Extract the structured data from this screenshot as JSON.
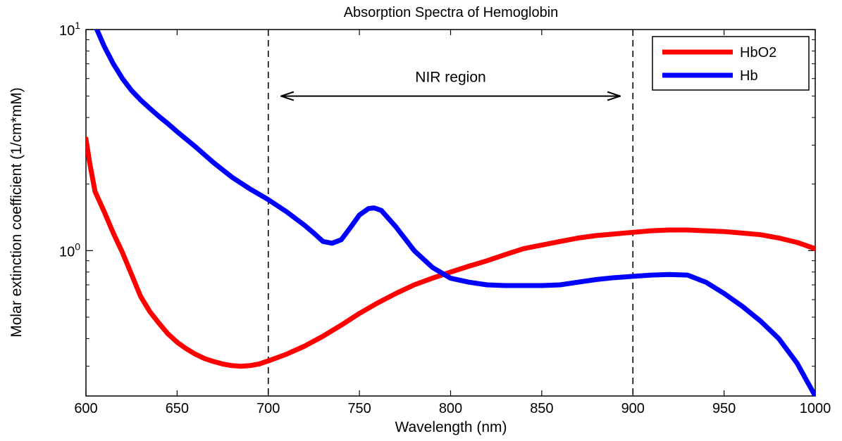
{
  "chart_data": {
    "type": "line",
    "title": "Absorption Spectra of Hemoglobin",
    "xlabel": "Wavelength (nm)",
    "ylabel": "Molar extinction coefficient (1/cm*mM)",
    "xlim": [
      600,
      1000
    ],
    "ylim": [
      0.22,
      10
    ],
    "yscale": "log",
    "x_ticks": [
      600,
      650,
      700,
      750,
      800,
      850,
      900,
      950,
      1000
    ],
    "x_tick_labels": [
      "600",
      "650",
      "700",
      "750",
      "800",
      "850",
      "900",
      "950",
      "1000"
    ],
    "y_ticks": [
      {
        "value": 1,
        "base": "10",
        "exp": "0"
      },
      {
        "value": 10,
        "base": "10",
        "exp": "1"
      }
    ],
    "grid": false,
    "legend": "top-right",
    "series": [
      {
        "name": "HbO2",
        "color": "#ff0000",
        "points": [
          [
            600,
            3.2
          ],
          [
            602,
            2.5
          ],
          [
            605,
            1.85
          ],
          [
            610,
            1.5
          ],
          [
            615,
            1.2
          ],
          [
            620,
            0.98
          ],
          [
            625,
            0.78
          ],
          [
            630,
            0.62
          ],
          [
            635,
            0.53
          ],
          [
            640,
            0.47
          ],
          [
            645,
            0.42
          ],
          [
            650,
            0.385
          ],
          [
            655,
            0.36
          ],
          [
            660,
            0.34
          ],
          [
            665,
            0.325
          ],
          [
            670,
            0.315
          ],
          [
            675,
            0.307
          ],
          [
            680,
            0.302
          ],
          [
            685,
            0.3
          ],
          [
            690,
            0.302
          ],
          [
            695,
            0.307
          ],
          [
            700,
            0.317
          ],
          [
            710,
            0.34
          ],
          [
            720,
            0.37
          ],
          [
            730,
            0.41
          ],
          [
            740,
            0.46
          ],
          [
            750,
            0.52
          ],
          [
            760,
            0.58
          ],
          [
            770,
            0.64
          ],
          [
            780,
            0.7
          ],
          [
            790,
            0.75
          ],
          [
            800,
            0.8
          ],
          [
            810,
            0.85
          ],
          [
            820,
            0.9
          ],
          [
            830,
            0.96
          ],
          [
            840,
            1.02
          ],
          [
            850,
            1.06
          ],
          [
            860,
            1.1
          ],
          [
            870,
            1.14
          ],
          [
            880,
            1.17
          ],
          [
            890,
            1.19
          ],
          [
            900,
            1.21
          ],
          [
            910,
            1.23
          ],
          [
            920,
            1.24
          ],
          [
            930,
            1.24
          ],
          [
            940,
            1.23
          ],
          [
            950,
            1.22
          ],
          [
            960,
            1.2
          ],
          [
            970,
            1.18
          ],
          [
            980,
            1.14
          ],
          [
            990,
            1.09
          ],
          [
            1000,
            1.02
          ]
        ]
      },
      {
        "name": "Hb",
        "color": "#0000ff",
        "points": [
          [
            606,
            10
          ],
          [
            610,
            8.4
          ],
          [
            615,
            7.0
          ],
          [
            620,
            6.0
          ],
          [
            625,
            5.3
          ],
          [
            630,
            4.8
          ],
          [
            635,
            4.4
          ],
          [
            640,
            4.05
          ],
          [
            645,
            3.75
          ],
          [
            650,
            3.45
          ],
          [
            660,
            2.95
          ],
          [
            670,
            2.5
          ],
          [
            680,
            2.15
          ],
          [
            690,
            1.9
          ],
          [
            700,
            1.7
          ],
          [
            710,
            1.5
          ],
          [
            720,
            1.3
          ],
          [
            725,
            1.2
          ],
          [
            730,
            1.1
          ],
          [
            735,
            1.08
          ],
          [
            740,
            1.12
          ],
          [
            745,
            1.27
          ],
          [
            750,
            1.45
          ],
          [
            755,
            1.55
          ],
          [
            758,
            1.56
          ],
          [
            762,
            1.52
          ],
          [
            770,
            1.28
          ],
          [
            780,
            1.0
          ],
          [
            790,
            0.84
          ],
          [
            800,
            0.75
          ],
          [
            810,
            0.72
          ],
          [
            820,
            0.7
          ],
          [
            830,
            0.695
          ],
          [
            840,
            0.695
          ],
          [
            850,
            0.695
          ],
          [
            860,
            0.7
          ],
          [
            870,
            0.72
          ],
          [
            880,
            0.74
          ],
          [
            890,
            0.755
          ],
          [
            900,
            0.765
          ],
          [
            910,
            0.775
          ],
          [
            920,
            0.78
          ],
          [
            930,
            0.775
          ],
          [
            940,
            0.72
          ],
          [
            950,
            0.64
          ],
          [
            960,
            0.56
          ],
          [
            970,
            0.48
          ],
          [
            980,
            0.4
          ],
          [
            990,
            0.31
          ],
          [
            1000,
            0.22
          ]
        ]
      }
    ],
    "vlines": [
      700,
      900
    ],
    "annotations": [
      {
        "text": "NIR region",
        "arrow_from": 707,
        "arrow_to": 893,
        "y": 5
      }
    ]
  }
}
